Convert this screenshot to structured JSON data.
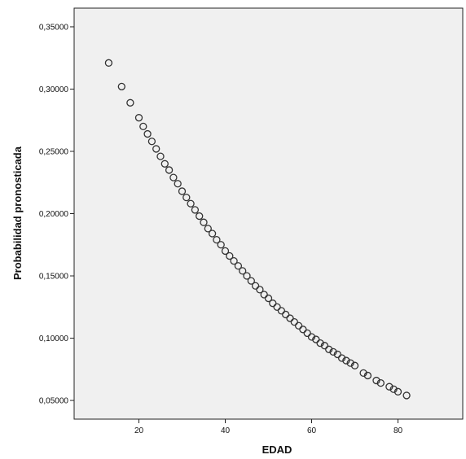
{
  "chart_data": {
    "type": "scatter",
    "title": "",
    "xlabel": "EDAD",
    "ylabel": "Probabilidad pronosticada",
    "xlim": [
      5,
      95
    ],
    "ylim": [
      0.035,
      0.365
    ],
    "x_ticks": [
      20,
      40,
      60,
      80
    ],
    "x_tick_labels": [
      "20",
      "40",
      "60",
      "80"
    ],
    "y_ticks": [
      0.05,
      0.1,
      0.15,
      0.2,
      0.25,
      0.3,
      0.35
    ],
    "y_tick_labels": [
      "0,05000",
      "0,10000",
      "0,15000",
      "0,20000",
      "0,25000",
      "0,30000",
      "0,35000"
    ],
    "grid": false,
    "colors": {
      "plot_background": "#f0f0f0",
      "marker_stroke": "#333333",
      "axis": "#222222"
    },
    "points": [
      {
        "x": 13,
        "y": 0.321
      },
      {
        "x": 16,
        "y": 0.302
      },
      {
        "x": 18,
        "y": 0.289
      },
      {
        "x": 20,
        "y": 0.277
      },
      {
        "x": 21,
        "y": 0.27
      },
      {
        "x": 22,
        "y": 0.264
      },
      {
        "x": 23,
        "y": 0.258
      },
      {
        "x": 24,
        "y": 0.252
      },
      {
        "x": 25,
        "y": 0.246
      },
      {
        "x": 26,
        "y": 0.24
      },
      {
        "x": 27,
        "y": 0.235
      },
      {
        "x": 28,
        "y": 0.229
      },
      {
        "x": 29,
        "y": 0.224
      },
      {
        "x": 30,
        "y": 0.218
      },
      {
        "x": 31,
        "y": 0.213
      },
      {
        "x": 32,
        "y": 0.208
      },
      {
        "x": 33,
        "y": 0.203
      },
      {
        "x": 34,
        "y": 0.198
      },
      {
        "x": 35,
        "y": 0.193
      },
      {
        "x": 36,
        "y": 0.188
      },
      {
        "x": 37,
        "y": 0.184
      },
      {
        "x": 38,
        "y": 0.179
      },
      {
        "x": 39,
        "y": 0.175
      },
      {
        "x": 40,
        "y": 0.17
      },
      {
        "x": 41,
        "y": 0.166
      },
      {
        "x": 42,
        "y": 0.162
      },
      {
        "x": 43,
        "y": 0.158
      },
      {
        "x": 44,
        "y": 0.154
      },
      {
        "x": 45,
        "y": 0.15
      },
      {
        "x": 46,
        "y": 0.146
      },
      {
        "x": 47,
        "y": 0.142
      },
      {
        "x": 48,
        "y": 0.139
      },
      {
        "x": 49,
        "y": 0.135
      },
      {
        "x": 50,
        "y": 0.132
      },
      {
        "x": 51,
        "y": 0.128
      },
      {
        "x": 52,
        "y": 0.125
      },
      {
        "x": 53,
        "y": 0.122
      },
      {
        "x": 54,
        "y": 0.119
      },
      {
        "x": 55,
        "y": 0.116
      },
      {
        "x": 56,
        "y": 0.113
      },
      {
        "x": 57,
        "y": 0.11
      },
      {
        "x": 58,
        "y": 0.107
      },
      {
        "x": 59,
        "y": 0.104
      },
      {
        "x": 60,
        "y": 0.101
      },
      {
        "x": 61,
        "y": 0.099
      },
      {
        "x": 62,
        "y": 0.096
      },
      {
        "x": 63,
        "y": 0.094
      },
      {
        "x": 64,
        "y": 0.091
      },
      {
        "x": 65,
        "y": 0.089
      },
      {
        "x": 66,
        "y": 0.087
      },
      {
        "x": 67,
        "y": 0.084
      },
      {
        "x": 68,
        "y": 0.082
      },
      {
        "x": 69,
        "y": 0.08
      },
      {
        "x": 70,
        "y": 0.078
      },
      {
        "x": 72,
        "y": 0.072
      },
      {
        "x": 73,
        "y": 0.07
      },
      {
        "x": 75,
        "y": 0.066
      },
      {
        "x": 76,
        "y": 0.064
      },
      {
        "x": 78,
        "y": 0.061
      },
      {
        "x": 79,
        "y": 0.059
      },
      {
        "x": 80,
        "y": 0.057
      },
      {
        "x": 82,
        "y": 0.054
      }
    ]
  }
}
